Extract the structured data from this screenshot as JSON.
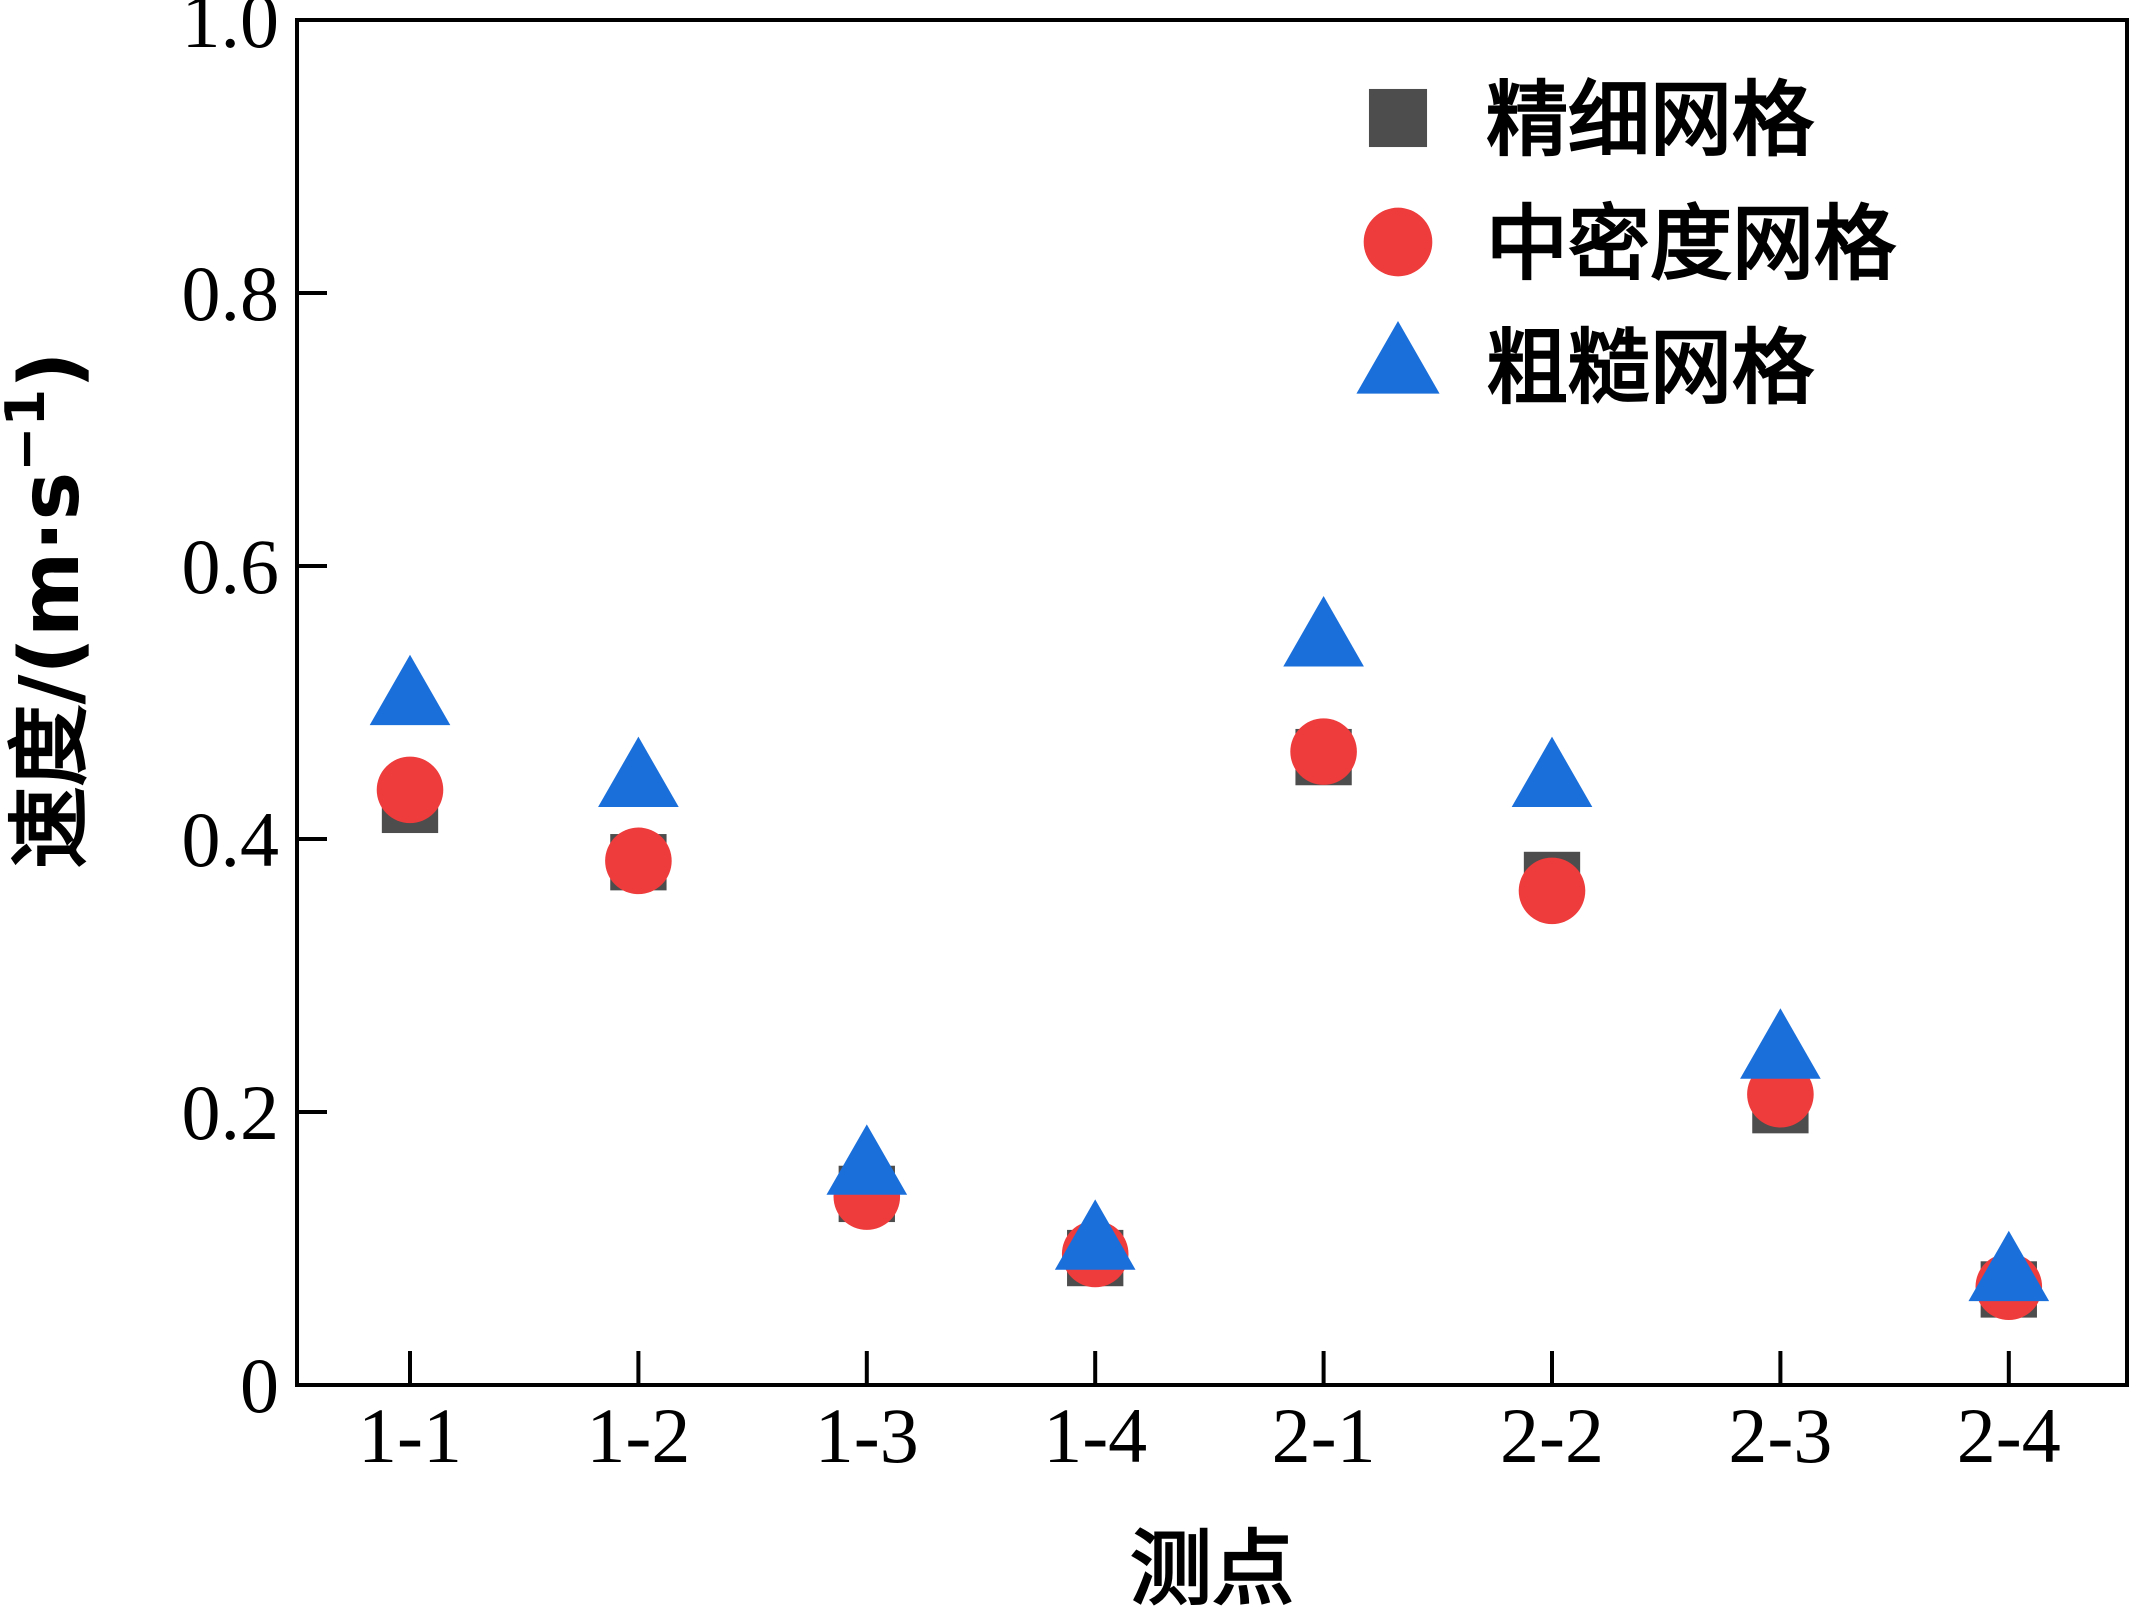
{
  "chart_data": {
    "type": "scatter",
    "categories": [
      "1-1",
      "1-2",
      "1-3",
      "1-4",
      "2-1",
      "2-2",
      "2-3",
      "2-4"
    ],
    "series": [
      {
        "name": "精细网格",
        "marker": "square",
        "color": "#4d4d4d",
        "values": [
          0.425,
          0.383,
          0.14,
          0.093,
          0.46,
          0.37,
          0.205,
          0.07
        ]
      },
      {
        "name": "中密度网格",
        "marker": "circle",
        "color": "#ee3b3b",
        "values": [
          0.436,
          0.384,
          0.138,
          0.096,
          0.464,
          0.362,
          0.213,
          0.072
        ]
      },
      {
        "name": "粗糙网格",
        "marker": "triangle",
        "color": "#1a6fdb",
        "values": [
          0.503,
          0.443,
          0.159,
          0.104,
          0.546,
          0.443,
          0.244,
          0.081
        ]
      }
    ],
    "xlabel": "测点",
    "ylabel": "速度/(m·s",
    "ylabel_sup": "−1",
    "ylabel_end": ")",
    "ylim": [
      0,
      1.0
    ],
    "yticks": [
      "0",
      "0.2",
      "0.4",
      "0.6",
      "0.8",
      "1.0"
    ],
    "grid": false,
    "legend_position": "top-right"
  }
}
